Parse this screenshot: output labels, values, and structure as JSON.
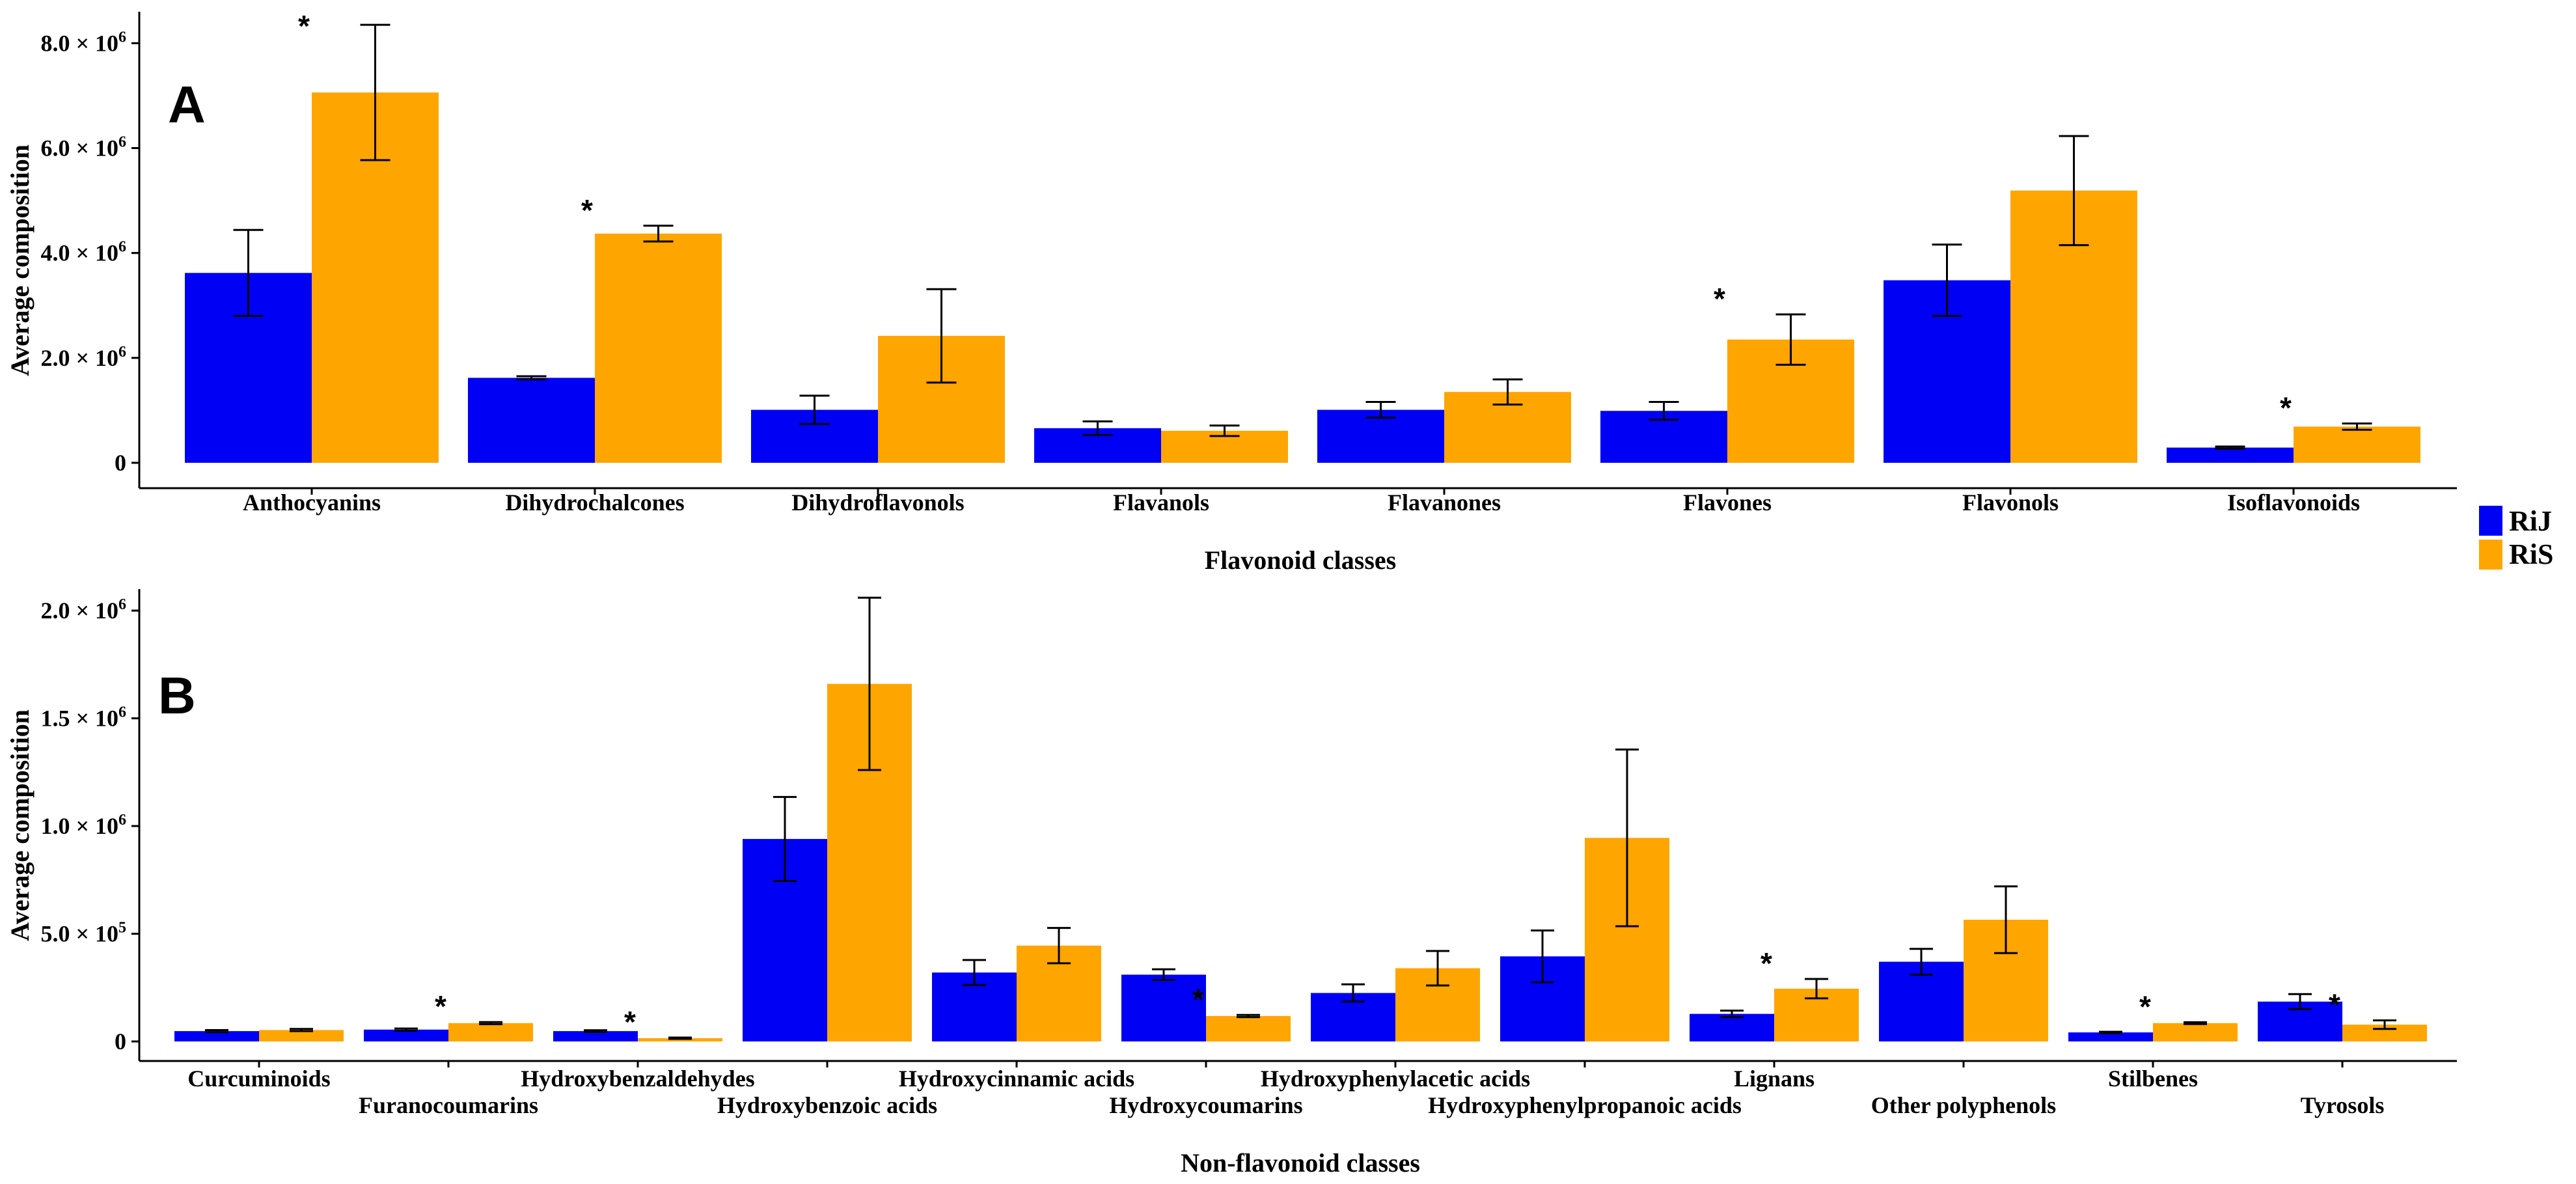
{
  "colors": {
    "RiJ": "#0000f5",
    "RiS": "#ffa500"
  },
  "legend": {
    "items": [
      "RiJ",
      "RiS"
    ]
  },
  "chart_data": [
    {
      "type": "bar",
      "panel": "A",
      "xlabel": "Flavonoid classes",
      "ylabel": "Average composition",
      "ylim": [
        0,
        8600000.0
      ],
      "y_ticks": [
        0,
        2000000.0,
        4000000.0,
        6000000.0,
        8000000.0
      ],
      "y_tick_labels": [
        {
          "mant": "0",
          "exp": ""
        },
        {
          "mant": "2.0 × 10",
          "exp": "6"
        },
        {
          "mant": "4.0 × 10",
          "exp": "6"
        },
        {
          "mant": "6.0 × 10",
          "exp": "6"
        },
        {
          "mant": "8.0 × 10",
          "exp": "6"
        }
      ],
      "categories": [
        "Anthocyanins",
        "Dihydrochalcones",
        "Dihydroflavonols",
        "Flavanols",
        "Flavanones",
        "Flavones",
        "Flavonols",
        "Isoflavonoids"
      ],
      "series": [
        {
          "name": "RiJ",
          "values": [
            3620000,
            1620000,
            1010000,
            660000,
            1010000,
            990000,
            3480000,
            290000
          ],
          "errors": [
            820000,
            30000,
            270000,
            130000,
            150000,
            170000,
            680000,
            20000
          ]
        },
        {
          "name": "RiS",
          "values": [
            7060000,
            4370000,
            2420000,
            610000,
            1350000,
            2350000,
            5190000,
            690000
          ],
          "errors": [
            1290000,
            150000,
            890000,
            100000,
            240000,
            480000,
            1040000,
            60000
          ]
        }
      ],
      "significant": [
        0,
        1,
        5,
        7
      ]
    },
    {
      "type": "bar",
      "panel": "B",
      "xlabel": "Non-flavonoid classes",
      "ylabel": "Average composition",
      "ylim": [
        0,
        2100000.0
      ],
      "y_ticks": [
        0,
        500000,
        1000000,
        1500000,
        2000000
      ],
      "y_tick_labels": [
        {
          "mant": "0",
          "exp": ""
        },
        {
          "mant": "5.0 × 10",
          "exp": "5"
        },
        {
          "mant": "1.0 × 10",
          "exp": "6"
        },
        {
          "mant": "1.5 × 10",
          "exp": "6"
        },
        {
          "mant": "2.0 × 10",
          "exp": "6"
        }
      ],
      "categories": [
        "Curcuminoids",
        "Furanocoumarins",
        "Hydroxybenzaldehydes",
        "Hydroxybenzoic acids",
        "Hydroxycinnamic acids",
        "Hydroxycoumarins",
        "Hydroxyphenylacetic acids",
        "Hydroxyphenylpropanoic acids",
        "Lignans",
        "Other polyphenols",
        "Stilbenes",
        "Tyrosols"
      ],
      "series": [
        {
          "name": "RiJ",
          "values": [
            48000,
            55000,
            48000,
            940000,
            320000,
            310000,
            225000,
            395000,
            128000,
            370000,
            42000,
            185000
          ],
          "errors": [
            5000,
            5000,
            4000,
            195000,
            58000,
            25000,
            40000,
            120000,
            15000,
            60000,
            3000,
            35000
          ]
        },
        {
          "name": "RiS",
          "values": [
            53000,
            85000,
            15000,
            1660000,
            445000,
            118000,
            340000,
            945000,
            245000,
            565000,
            85000,
            78000
          ],
          "errors": [
            5000,
            5000,
            3000,
            400000,
            82000,
            5000,
            80000,
            410000,
            45000,
            155000,
            4000,
            20000
          ]
        }
      ],
      "significant": [
        1,
        2,
        5,
        8,
        10,
        11
      ]
    }
  ]
}
